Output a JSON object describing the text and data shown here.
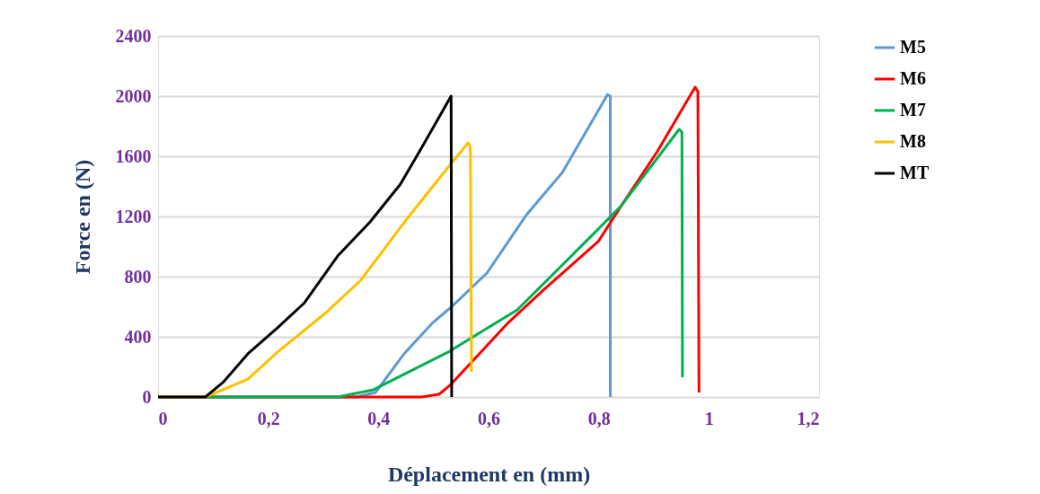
{
  "chart_data": {
    "type": "line",
    "xlabel": "Déplacement en (mm)",
    "ylabel": "Force en (N)",
    "xlim": [
      0,
      1.2
    ],
    "ylim": [
      0,
      2400
    ],
    "xticks": [
      0,
      {
        "value": 0.2,
        "label": "0,2"
      },
      {
        "value": 0.4,
        "label": "0,4"
      },
      {
        "value": 0.6,
        "label": "0,6"
      },
      {
        "value": 0.8,
        "label": "0,8"
      },
      1,
      {
        "value": 1.2,
        "label": "1,2"
      }
    ],
    "yticks": [
      0,
      400,
      800,
      1200,
      1600,
      2000,
      2400
    ],
    "grid": "y",
    "legend": "right",
    "marker": "none",
    "line_style": "solid",
    "series": [
      {
        "name": "M5",
        "color": "#5b9bd5",
        "x": [
          0,
          0.36,
          0.395,
          0.445,
          0.499,
          0.532,
          0.597,
          0.669,
          0.734,
          0.816,
          0.821,
          0.821
        ],
        "values": [
          0,
          0,
          30,
          280,
          495,
          597,
          824,
          1212,
          1493,
          2010,
          2000,
          0
        ]
      },
      {
        "name": "M6",
        "color": "#ff0000",
        "x": [
          0,
          0.478,
          0.51,
          0.53,
          0.571,
          0.636,
          0.701,
          0.799,
          0.841,
          0.906,
          0.975,
          0.98,
          0.982
        ],
        "values": [
          0,
          0,
          18,
          78,
          239,
          495,
          716,
          1033,
          1272,
          1630,
          2060,
          2030,
          30
        ]
      },
      {
        "name": "M7",
        "color": "#00b050",
        "x": [
          0,
          0.326,
          0.391,
          0.527,
          0.652,
          0.711,
          0.799,
          0.841,
          0.946,
          0.951,
          0.952
        ],
        "values": [
          0,
          0,
          48,
          299,
          579,
          794,
          1116,
          1272,
          1779,
          1761,
          131
        ]
      },
      {
        "name": "M8",
        "color": "#ffc000",
        "x": [
          0,
          0.086,
          0.163,
          0.217,
          0.303,
          0.368,
          0.445,
          0.532,
          0.563,
          0.567,
          0.569
        ],
        "values": [
          0,
          0,
          119,
          299,
          555,
          776,
          1152,
          1552,
          1690,
          1660,
          167
        ]
      },
      {
        "name": "MT",
        "color": "#000000",
        "x": [
          0,
          0.086,
          0.119,
          0.163,
          0.217,
          0.266,
          0.326,
          0.385,
          0.44,
          0.478,
          0.532,
          0.533
        ],
        "values": [
          0,
          0,
          101,
          287,
          460,
          627,
          937,
          1164,
          1415,
          1654,
          2000,
          0
        ]
      }
    ]
  }
}
